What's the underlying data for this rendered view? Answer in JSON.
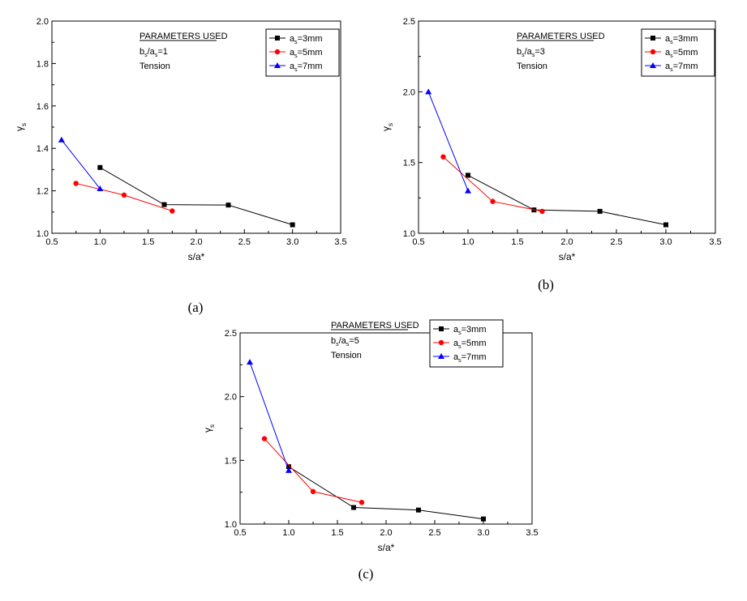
{
  "chart_data": [
    {
      "type": "line",
      "panel_label": "(a)",
      "xlabel": "s/a*",
      "ylabel": "γ",
      "ylabel_sub": "s",
      "xlim": [
        0.5,
        3.5
      ],
      "ylim": [
        1.0,
        2.0
      ],
      "xticks": [
        "0.5",
        "1.0",
        "1.5",
        "2.0",
        "2.5",
        "3.0",
        "3.5"
      ],
      "yticks": [
        "1.0",
        "1.2",
        "1.4",
        "1.6",
        "1.8",
        "2.0"
      ],
      "annotation": {
        "title": "PARAMETERS USED",
        "ratio": {
          "b": "b",
          "b_sub": "s",
          "mid": "/a",
          "mid_sub": "s",
          "val": "=1"
        },
        "load": "Tension"
      },
      "series": [
        {
          "name": "a=3mm",
          "name_main": "a",
          "name_sub": "s",
          "name_rest": "=3mm",
          "color": "#000000",
          "marker": "square",
          "x": [
            1.0,
            1.667,
            2.333,
            3.0
          ],
          "y": [
            1.31,
            1.135,
            1.133,
            1.04
          ]
        },
        {
          "name": "a=5mm",
          "name_main": "a",
          "name_sub": "s",
          "name_rest": "=5mm",
          "color": "#ff0000",
          "marker": "circle",
          "x": [
            0.75,
            1.25,
            1.75
          ],
          "y": [
            1.235,
            1.18,
            1.105
          ]
        },
        {
          "name": "a=7mm",
          "name_main": "a",
          "name_sub": "s",
          "name_rest": "=7mm",
          "color": "#0000ff",
          "marker": "triangle",
          "x": [
            0.6,
            1.0
          ],
          "y": [
            1.44,
            1.21
          ]
        }
      ]
    },
    {
      "type": "line",
      "panel_label": "(b)",
      "xlabel": "s/a*",
      "ylabel": "γ",
      "ylabel_sub": "s",
      "xlim": [
        0.5,
        3.5
      ],
      "ylim": [
        1.0,
        2.5
      ],
      "xticks": [
        "0.5",
        "1.0",
        "1.5",
        "2.0",
        "2.5",
        "3.0",
        "3.5"
      ],
      "yticks": [
        "1.0",
        "1.5",
        "2.0",
        "2.5"
      ],
      "annotation": {
        "title": "PARAMETERS USED",
        "ratio": {
          "b": "b",
          "b_sub": "s",
          "mid": "/a",
          "mid_sub": "s",
          "val": "=3"
        },
        "load": "Tension"
      },
      "series": [
        {
          "name": "a=3mm",
          "name_main": "a",
          "name_sub": "s",
          "name_rest": "=3mm",
          "color": "#000000",
          "marker": "square",
          "x": [
            1.0,
            1.667,
            2.333,
            3.0
          ],
          "y": [
            1.41,
            1.165,
            1.155,
            1.06
          ]
        },
        {
          "name": "a=5mm",
          "name_main": "a",
          "name_sub": "s",
          "name_rest": "=5mm",
          "color": "#ff0000",
          "marker": "circle",
          "x": [
            0.75,
            1.25,
            1.75
          ],
          "y": [
            1.54,
            1.225,
            1.155
          ]
        },
        {
          "name": "a=7mm",
          "name_main": "a",
          "name_sub": "s",
          "name_rest": "=7mm",
          "color": "#0000ff",
          "marker": "triangle",
          "x": [
            0.6,
            1.0
          ],
          "y": [
            2.0,
            1.3
          ]
        }
      ]
    },
    {
      "type": "line",
      "panel_label": "(c)",
      "xlabel": "s/a*",
      "ylabel": "γ",
      "ylabel_sub": "s",
      "xlim": [
        0.5,
        3.5
      ],
      "ylim": [
        1.0,
        2.5
      ],
      "xticks": [
        "0.5",
        "1.0",
        "1.5",
        "2.0",
        "2.5",
        "3.0",
        "3.5"
      ],
      "yticks": [
        "1.0",
        "1.5",
        "2.0",
        "2.5"
      ],
      "annotation": {
        "title": "PARAMETERS USED",
        "ratio": {
          "b": "b",
          "b_sub": "s",
          "mid": "/a",
          "mid_sub": "s",
          "val": "=5"
        },
        "load": "Tension"
      },
      "series": [
        {
          "name": "a=3mm",
          "name_main": "a",
          "name_sub": "s",
          "name_rest": "=3mm",
          "color": "#000000",
          "marker": "square",
          "x": [
            1.0,
            1.667,
            2.333,
            3.0
          ],
          "y": [
            1.45,
            1.13,
            1.11,
            1.04
          ]
        },
        {
          "name": "a=5mm",
          "name_main": "a",
          "name_sub": "s",
          "name_rest": "=5mm",
          "color": "#ff0000",
          "marker": "circle",
          "x": [
            0.75,
            1.25,
            1.75
          ],
          "y": [
            1.67,
            1.255,
            1.17
          ]
        },
        {
          "name": "a=7mm",
          "name_main": "a",
          "name_sub": "s",
          "name_rest": "=7mm",
          "color": "#0000ff",
          "marker": "triangle",
          "x": [
            0.6,
            1.0
          ],
          "y": [
            2.27,
            1.42
          ]
        }
      ]
    }
  ]
}
